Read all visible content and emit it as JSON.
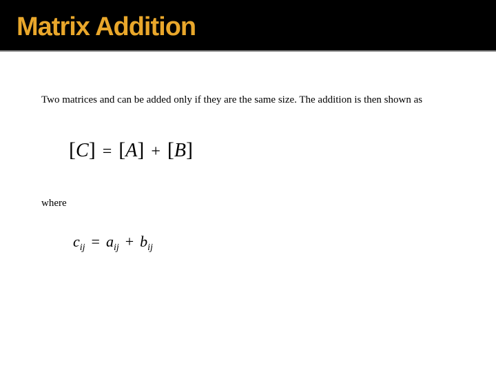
{
  "header": {
    "title": "Matrix Addition",
    "title_color": "#e9a72b",
    "title_fontsize": 38,
    "band_background": "#000000",
    "divider_color": "#808080"
  },
  "body": {
    "intro_text": "Two matrices   and  can be added only if they are the same size. The addition is then shown as",
    "intro_fontsize": 15,
    "where_text": "where",
    "where_fontsize": 15,
    "text_color": "#000000",
    "background_color": "#ffffff"
  },
  "equation_main": {
    "display": "[C] = [A] + [B]",
    "lhs_var": "C",
    "rhs_var1": "A",
    "rhs_var2": "B",
    "op_eq": "=",
    "op_plus": "+",
    "fontsize_bracket": 30,
    "fontsize_var": 28,
    "color": "#000000"
  },
  "equation_element": {
    "display": "c_ij = a_ij + b_ij",
    "lhs_base": "c",
    "lhs_sub": "ij",
    "rhs1_base": "a",
    "rhs1_sub": "ij",
    "rhs2_base": "b",
    "rhs2_sub": "ij",
    "op_eq": "=",
    "op_plus": "+",
    "fontsize_base": 22,
    "fontsize_sub": 14,
    "color": "#000000"
  }
}
